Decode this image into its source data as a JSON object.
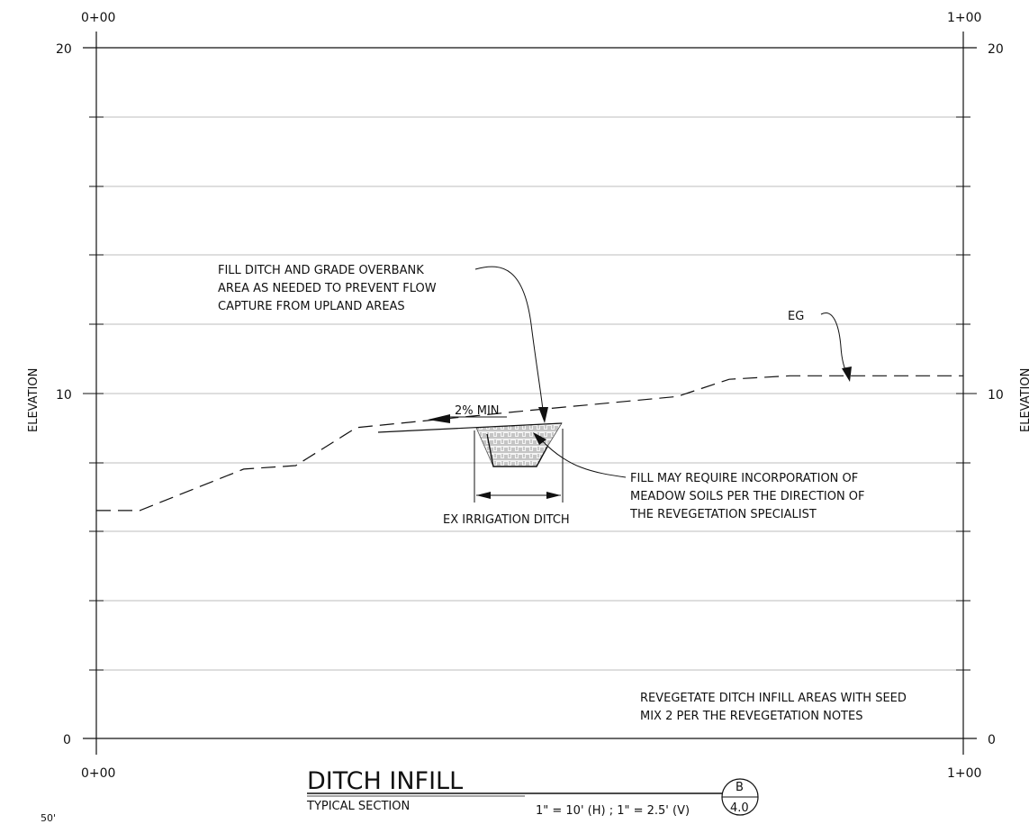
{
  "stations": {
    "top_left": "0+00",
    "top_right": "1+00",
    "bottom_left": "0+00",
    "bottom_right": "1+00"
  },
  "elevation_labels": {
    "left": [
      "20",
      "10",
      "0"
    ],
    "right": [
      "20",
      "10",
      "0"
    ]
  },
  "axis_label": {
    "left": "ELEVATION",
    "right": "ELEVATION"
  },
  "notes": {
    "fill_ditch": [
      "FILL DITCH AND GRADE OVERBANK",
      "AREA AS NEEDED TO PREVENT FLOW",
      "CAPTURE FROM UPLAND AREAS"
    ],
    "eg": "EG",
    "slope": "2% MIN",
    "fill_may": [
      "FILL MAY REQUIRE INCORPORATION OF",
      "MEADOW SOILS PER THE DIRECTION OF",
      "THE REVEGETATION SPECIALIST"
    ],
    "ex_ditch": "EX IRRIGATION DITCH",
    "revegetate": [
      "REVEGETATE DITCH INFILL AREAS WITH SEED",
      "MIX 2 PER THE REVEGETATION NOTES"
    ]
  },
  "title_block": {
    "title": "DITCH INFILL",
    "subtitle": "TYPICAL SECTION",
    "scale": "1\" = 10' (H) ; 1\" = 2.5' (V)",
    "detail_letter": "B",
    "sheet": "4.0"
  },
  "corner_label": "50'",
  "chart_data": {
    "type": "line",
    "xlim": [
      0,
      100
    ],
    "ylim": [
      0,
      20
    ],
    "grid": true,
    "series": [
      {
        "values_xy": [
          [
            0,
            6.6
          ],
          [
            5,
            6.6
          ],
          [
            17,
            7.8
          ],
          [
            23,
            7.9
          ],
          [
            30,
            9.0
          ],
          [
            50,
            9.5
          ],
          [
            67,
            9.9
          ],
          [
            73,
            10.4
          ],
          [
            80,
            10.5
          ],
          [
            100,
            10.5
          ]
        ]
      }
    ]
  }
}
